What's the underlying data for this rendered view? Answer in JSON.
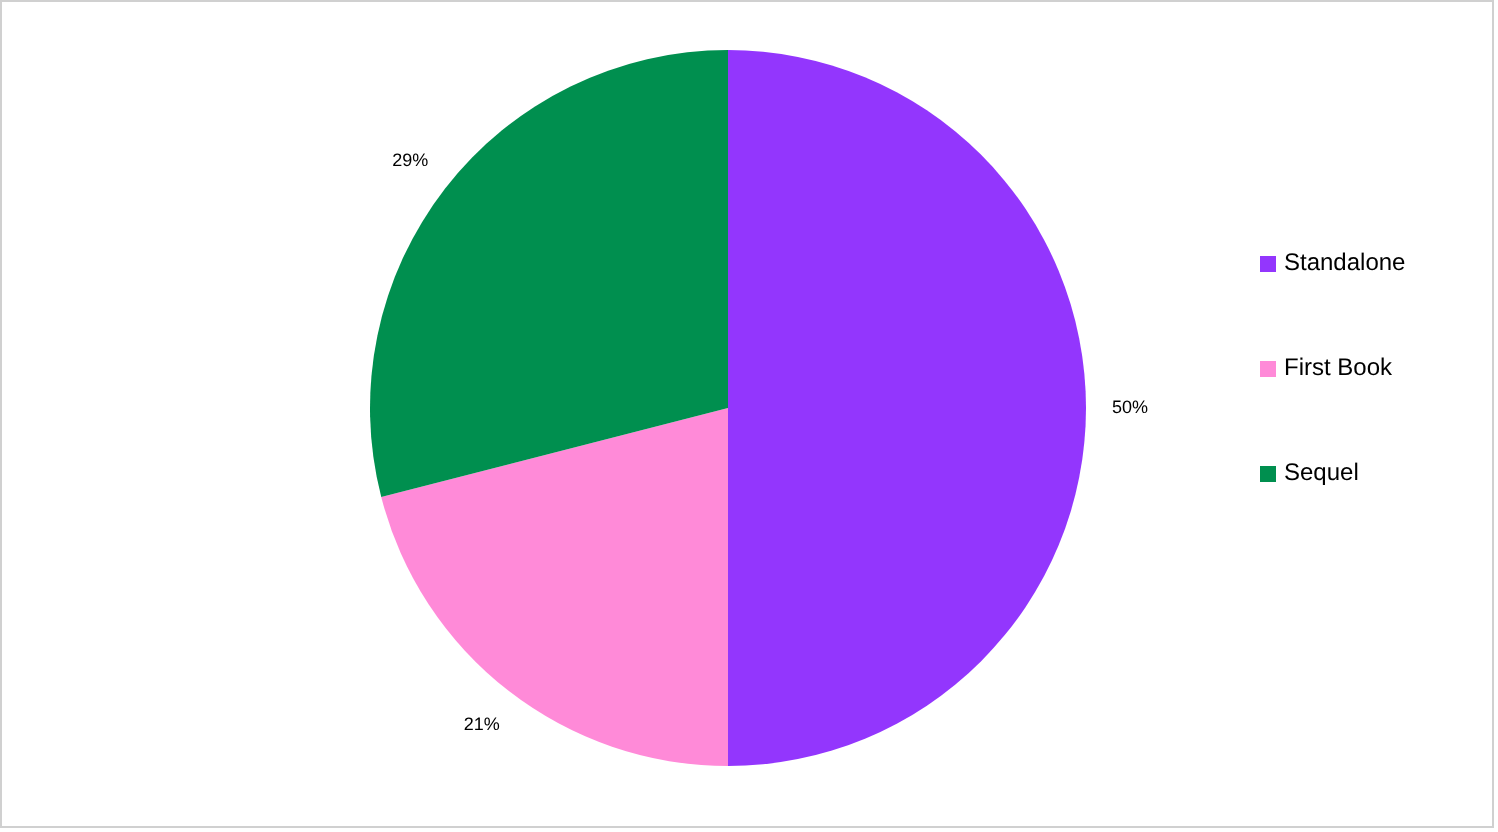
{
  "chart_data": {
    "type": "pie",
    "categories": [
      "Standalone",
      "First Book",
      "Sequel"
    ],
    "values": [
      50,
      21,
      29
    ],
    "colors": [
      "#9336fd",
      "#ff8ad8",
      "#008f4f"
    ],
    "value_labels": [
      "50%",
      "21%",
      "29%"
    ],
    "legend": "right"
  }
}
